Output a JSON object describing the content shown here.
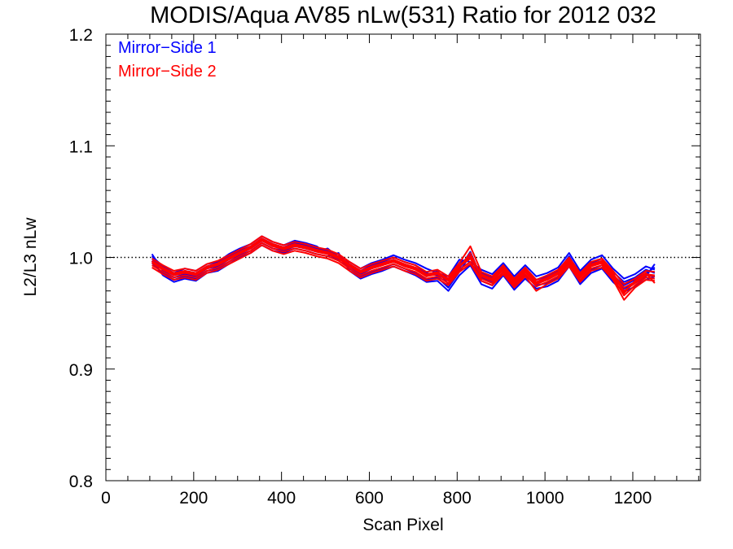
{
  "chart_data": {
    "type": "line",
    "title": "MODIS/Aqua AV85 nLw(531) Ratio for 2012 032",
    "xlabel": "Scan Pixel",
    "ylabel": "L2/L3 nLw",
    "xlim": [
      0,
      1354
    ],
    "ylim": [
      0.8,
      1.2
    ],
    "x_ticks": [
      "0",
      "200",
      "400",
      "600",
      "800",
      "1000",
      "1200"
    ],
    "y_ticks": [
      "0.8",
      "0.9",
      "1.0",
      "1.1",
      "1.2"
    ],
    "reference_line": 1.0,
    "legend": [
      {
        "label": "Mirror−Side 1",
        "color": "#0000ff"
      },
      {
        "label": "Mirror−Side 2",
        "color": "#ff0000"
      }
    ],
    "legend_position": "top-left",
    "x": [
      105,
      130,
      155,
      180,
      205,
      230,
      255,
      280,
      305,
      330,
      355,
      380,
      405,
      430,
      455,
      480,
      505,
      530,
      555,
      580,
      605,
      630,
      655,
      680,
      705,
      730,
      755,
      780,
      805,
      830,
      855,
      880,
      905,
      930,
      955,
      980,
      1005,
      1030,
      1055,
      1080,
      1105,
      1130,
      1155,
      1180,
      1205,
      1230,
      1250
    ],
    "series": [
      {
        "name": "Mirror−Side 1",
        "color": "#0000ff",
        "lines": [
          [
            1.003,
            0.988,
            0.982,
            0.985,
            0.983,
            0.99,
            0.992,
            0.998,
            1.004,
            1.008,
            1.015,
            1.01,
            1.008,
            1.012,
            1.01,
            1.007,
            1.006,
            1.003,
            0.992,
            0.985,
            0.99,
            0.993,
            0.998,
            0.993,
            0.99,
            0.983,
            0.988,
            0.976,
            0.99,
            1.005,
            0.982,
            0.978,
            0.99,
            0.976,
            0.987,
            0.978,
            0.98,
            0.985,
            0.998,
            0.982,
            0.992,
            0.996,
            0.984,
            0.975,
            0.98,
            0.986,
            0.991
          ],
          [
            0.999,
            0.99,
            0.984,
            0.988,
            0.986,
            0.992,
            0.995,
            1.001,
            1.006,
            1.01,
            1.017,
            1.012,
            1.009,
            1.013,
            1.011,
            1.008,
            1.005,
            1.001,
            0.994,
            0.988,
            0.993,
            0.996,
            1.0,
            0.996,
            0.993,
            0.986,
            0.984,
            0.98,
            0.995,
            1.0,
            0.986,
            0.982,
            0.992,
            0.98,
            0.99,
            0.98,
            0.983,
            0.988,
            1.001,
            0.985,
            0.995,
            0.999,
            0.987,
            0.978,
            0.982,
            0.989,
            0.986
          ],
          [
            0.995,
            0.986,
            0.98,
            0.983,
            0.981,
            0.988,
            0.99,
            0.996,
            1.002,
            1.006,
            1.013,
            1.008,
            1.006,
            1.01,
            1.008,
            1.005,
            1.008,
            1.0,
            0.99,
            0.983,
            0.987,
            0.99,
            0.994,
            0.99,
            0.986,
            0.98,
            0.982,
            0.973,
            0.987,
            1.002,
            0.979,
            0.975,
            0.987,
            0.974,
            0.984,
            0.975,
            0.977,
            0.982,
            0.995,
            0.979,
            0.989,
            0.993,
            0.981,
            0.972,
            0.977,
            0.983,
            0.994
          ],
          [
            1.001,
            0.992,
            0.986,
            0.99,
            0.988,
            0.994,
            0.996,
            1.003,
            1.008,
            1.012,
            1.019,
            1.014,
            1.011,
            1.015,
            1.013,
            1.01,
            1.003,
            0.998,
            0.996,
            0.99,
            0.995,
            0.998,
            1.002,
            0.998,
            0.995,
            0.99,
            0.986,
            0.983,
            0.998,
            0.996,
            0.989,
            0.985,
            0.995,
            0.983,
            0.993,
            0.983,
            0.986,
            0.991,
            1.004,
            0.988,
            0.998,
            1.002,
            0.99,
            0.981,
            0.985,
            0.992,
            0.989
          ],
          [
            0.997,
            0.984,
            0.978,
            0.981,
            0.979,
            0.986,
            0.988,
            0.994,
            1.0,
            1.004,
            1.011,
            1.006,
            1.004,
            1.008,
            1.006,
            1.003,
            1.001,
            1.004,
            0.988,
            0.981,
            0.985,
            0.988,
            0.992,
            0.988,
            0.984,
            0.978,
            0.979,
            0.97,
            0.984,
            0.993,
            0.976,
            0.972,
            0.984,
            0.971,
            0.981,
            0.972,
            0.974,
            0.979,
            0.992,
            0.976,
            0.986,
            0.99,
            0.978,
            0.969,
            0.974,
            0.98,
            0.983
          ]
        ]
      },
      {
        "name": "Mirror−Side 2",
        "color": "#ff0000",
        "lines": [
          [
            0.996,
            0.99,
            0.985,
            0.987,
            0.985,
            0.991,
            0.994,
            0.999,
            1.004,
            1.009,
            1.016,
            1.011,
            1.008,
            1.011,
            1.009,
            1.006,
            1.004,
            1.0,
            0.993,
            0.987,
            0.991,
            0.994,
            0.997,
            0.993,
            0.99,
            0.984,
            0.986,
            0.98,
            0.992,
            0.999,
            0.984,
            0.98,
            0.99,
            0.978,
            0.988,
            0.977,
            0.981,
            0.986,
            0.997,
            0.983,
            0.993,
            0.996,
            0.985,
            0.973,
            0.978,
            0.985,
            0.984
          ],
          [
            0.993,
            0.987,
            0.982,
            0.984,
            0.982,
            0.988,
            0.991,
            0.996,
            1.001,
            1.006,
            1.013,
            1.008,
            1.005,
            1.008,
            1.006,
            1.003,
            1.001,
            0.997,
            0.99,
            0.984,
            0.988,
            0.991,
            0.994,
            0.99,
            0.987,
            0.981,
            0.983,
            0.977,
            0.989,
            0.996,
            0.981,
            0.977,
            0.987,
            0.975,
            0.985,
            0.974,
            0.978,
            0.983,
            0.994,
            0.98,
            0.99,
            0.993,
            0.982,
            0.966,
            0.975,
            0.982,
            0.981
          ],
          [
            0.999,
            0.993,
            0.988,
            0.99,
            0.988,
            0.994,
            0.997,
            1.002,
            1.007,
            1.012,
            1.019,
            1.014,
            1.011,
            1.014,
            1.012,
            1.009,
            1.007,
            1.003,
            0.996,
            0.99,
            0.994,
            0.997,
            1.0,
            0.996,
            0.993,
            0.987,
            0.989,
            0.983,
            0.995,
            1.01,
            0.987,
            0.983,
            0.993,
            0.981,
            0.991,
            0.98,
            0.984,
            0.989,
            1.0,
            0.986,
            0.996,
            0.999,
            0.988,
            0.976,
            0.981,
            0.988,
            0.987
          ],
          [
            0.991,
            0.985,
            0.98,
            0.982,
            0.98,
            0.986,
            0.989,
            0.994,
            0.999,
            1.004,
            1.011,
            1.006,
            1.003,
            1.006,
            1.004,
            1.001,
            0.999,
            0.995,
            0.988,
            0.982,
            0.986,
            0.989,
            0.992,
            0.988,
            0.985,
            0.979,
            0.981,
            0.975,
            0.987,
            0.994,
            0.979,
            0.975,
            0.985,
            0.973,
            0.983,
            0.97,
            0.976,
            0.981,
            0.992,
            0.978,
            0.988,
            0.991,
            0.98,
            0.962,
            0.973,
            0.98,
            0.979
          ],
          [
            0.995,
            0.989,
            0.984,
            0.986,
            0.984,
            0.99,
            0.993,
            0.998,
            1.003,
            1.008,
            1.015,
            1.01,
            1.007,
            1.01,
            1.008,
            1.005,
            1.003,
            0.999,
            0.992,
            0.986,
            0.99,
            0.993,
            0.996,
            0.992,
            0.989,
            0.983,
            0.985,
            0.979,
            0.991,
            1.004,
            0.983,
            0.979,
            0.989,
            0.977,
            0.987,
            0.976,
            0.98,
            0.985,
            0.996,
            0.982,
            0.992,
            0.995,
            0.984,
            0.97,
            0.977,
            0.984,
            0.983
          ],
          [
            0.997,
            0.991,
            0.986,
            0.988,
            0.986,
            0.992,
            0.995,
            1.0,
            1.005,
            1.01,
            1.017,
            1.012,
            1.009,
            1.012,
            1.01,
            1.007,
            1.005,
            1.001,
            0.994,
            0.988,
            0.992,
            0.995,
            0.998,
            0.994,
            0.991,
            0.985,
            0.987,
            0.981,
            0.993,
            1.001,
            0.985,
            0.981,
            0.991,
            0.979,
            0.989,
            0.978,
            0.982,
            0.987,
            0.998,
            0.984,
            0.994,
            0.997,
            0.986,
            0.968,
            0.979,
            0.986,
            0.977
          ]
        ]
      }
    ]
  }
}
